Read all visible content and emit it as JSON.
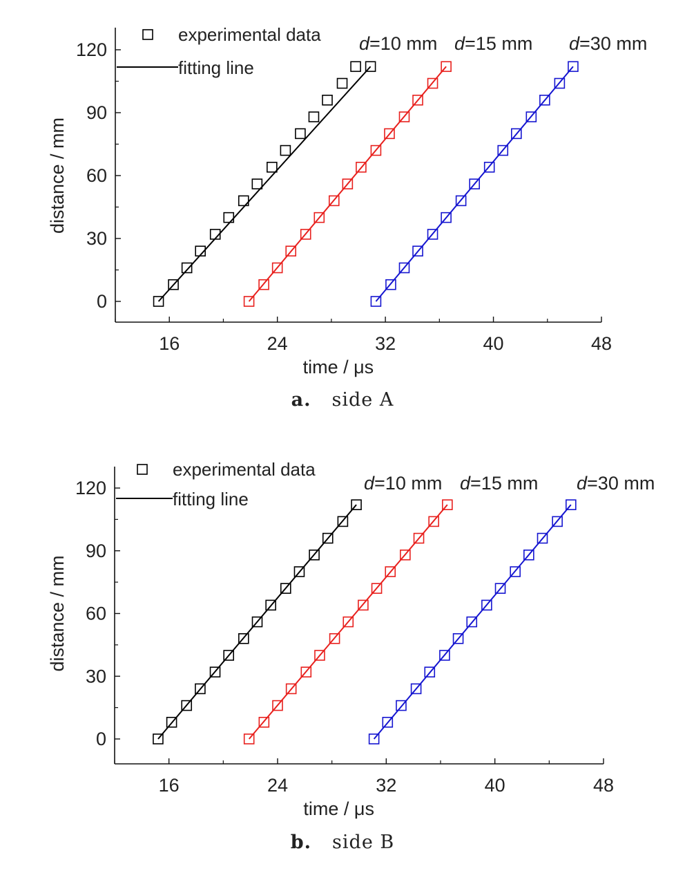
{
  "chart_data": [
    {
      "type": "scatter",
      "xlabel": "time / μs",
      "ylabel": "distance / mm",
      "xlim": [
        12,
        48
      ],
      "ylim": [
        -10,
        130
      ],
      "xticks": [
        16,
        24,
        32,
        40,
        48
      ],
      "yticks": [
        0,
        30,
        60,
        90,
        120
      ],
      "legend": {
        "markers_label": "experimental data",
        "line_label": "fitting line",
        "placement": "top-left"
      },
      "caption_letter": "a.",
      "caption_text": "side A",
      "series": [
        {
          "name": "d=10 mm",
          "label_prefix": "d",
          "label_suffix": "=10 mm",
          "color": "#000000",
          "x": [
            15.2,
            16.3,
            17.3,
            18.3,
            19.4,
            20.4,
            21.5,
            22.5,
            23.6,
            24.6,
            25.7,
            26.7,
            27.7,
            28.8,
            29.8,
            30.9
          ],
          "y": [
            0,
            8,
            16,
            24,
            32,
            40,
            48,
            56,
            64,
            72,
            80,
            88,
            96,
            104,
            112,
            112
          ]
        },
        {
          "name": "d=15 mm",
          "label_prefix": "d",
          "label_suffix": "=15 mm",
          "color": "#e8201d",
          "x": [
            21.9,
            23.0,
            24.0,
            25.0,
            26.1,
            27.1,
            28.2,
            29.2,
            30.2,
            31.3,
            32.3,
            33.4,
            34.4,
            35.5,
            36.5
          ],
          "y": [
            0,
            8,
            16,
            24,
            32,
            40,
            48,
            56,
            64,
            72,
            80,
            88,
            96,
            104,
            112
          ]
        },
        {
          "name": "d=30 mm",
          "label_prefix": "d",
          "label_suffix": "=30 mm",
          "color": "#1515d0",
          "x": [
            31.3,
            32.4,
            33.4,
            34.4,
            35.5,
            36.5,
            37.6,
            38.6,
            39.7,
            40.7,
            41.7,
            42.8,
            43.8,
            44.9,
            45.9
          ],
          "y": [
            0,
            8,
            16,
            24,
            32,
            40,
            48,
            56,
            64,
            72,
            80,
            88,
            96,
            104,
            112
          ]
        }
      ]
    },
    {
      "type": "scatter",
      "xlabel": "time / μs",
      "ylabel": "distance / mm",
      "xlim": [
        12,
        48
      ],
      "ylim": [
        -10,
        130
      ],
      "xticks": [
        16,
        24,
        32,
        40,
        48
      ],
      "yticks": [
        0,
        30,
        60,
        90,
        120
      ],
      "legend": {
        "markers_label": "experimental data",
        "line_label": "fitting line",
        "placement": "top-left"
      },
      "caption_letter": "b.",
      "caption_text": "side B",
      "series": [
        {
          "name": "d=10 mm",
          "label_prefix": "d",
          "label_suffix": "=10 mm",
          "color": "#000000",
          "x": [
            15.2,
            16.2,
            17.3,
            18.3,
            19.4,
            20.4,
            21.5,
            22.5,
            23.5,
            24.6,
            25.6,
            26.7,
            27.7,
            28.8,
            29.8
          ],
          "y": [
            0,
            8,
            16,
            24,
            32,
            40,
            48,
            56,
            64,
            72,
            80,
            88,
            96,
            104,
            112
          ]
        },
        {
          "name": "d=15 mm",
          "label_prefix": "d",
          "label_suffix": "=15 mm",
          "color": "#e8201d",
          "x": [
            21.9,
            23.0,
            24.0,
            25.0,
            26.1,
            27.1,
            28.2,
            29.2,
            30.3,
            31.3,
            32.3,
            33.4,
            34.4,
            35.5,
            36.5
          ],
          "y": [
            0,
            8,
            16,
            24,
            32,
            40,
            48,
            56,
            64,
            72,
            80,
            88,
            96,
            104,
            112
          ]
        },
        {
          "name": "d=30 mm",
          "label_prefix": "d",
          "label_suffix": "=30 mm",
          "color": "#1515d0",
          "x": [
            31.1,
            32.1,
            33.1,
            34.2,
            35.2,
            36.3,
            37.3,
            38.3,
            39.4,
            40.4,
            41.5,
            42.5,
            43.5,
            44.6,
            45.6
          ],
          "y": [
            0,
            8,
            16,
            24,
            32,
            40,
            48,
            56,
            64,
            72,
            80,
            88,
            96,
            104,
            112
          ]
        }
      ]
    }
  ]
}
